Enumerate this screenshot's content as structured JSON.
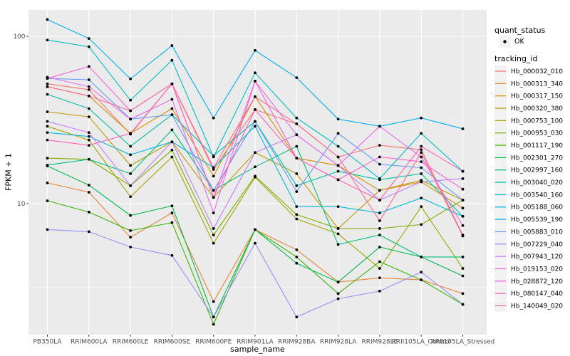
{
  "figure": {
    "x_title": "sample_name",
    "y_title": "FPKM + 1"
  },
  "legend": {
    "quant_status": {
      "title": "quant_status",
      "items": [
        {
          "label": "OK",
          "marker": "point"
        }
      ]
    },
    "tracking_id": {
      "title": "tracking_id"
    }
  },
  "colors": {
    "panel_background": "#EBEBEB",
    "grid": "#FFFFFF",
    "tick": "#333333",
    "tick_label": "#4D4D4D",
    "point": "#000000",
    "legend_key_background": "#F2F2F2"
  },
  "chart_data": {
    "type": "line",
    "title": "",
    "xlabel": "sample_name",
    "ylabel": "FPKM + 1",
    "y_scale": "log10",
    "ylim": [
      1.65,
      144
    ],
    "grid": true,
    "legend_position": "right",
    "y_axis_ticks": [
      {
        "label": "100",
        "value": 100
      },
      {
        "label": "10",
        "value": 10
      }
    ],
    "y_minor_ticks": [
      31.62,
      3.162
    ],
    "x_categories": [
      "PB350LA",
      "RRIM600LA",
      "RRIM600LE",
      "RRIM600SE",
      "RRIM600PE",
      "RRIM901LA",
      "RRIM928BA",
      "RRIM928LA",
      "RRIM928LE",
      "RRII105LA_Control",
      "RRII105LA_Stressed"
    ],
    "series": [
      {
        "name": "Hb_000032_010",
        "color": "#F8766D",
        "values": [
          52,
          48,
          26,
          52,
          16,
          36.5,
          30,
          19,
          22.3,
          21,
          6.5
        ]
      },
      {
        "name": "Hb_000313_340",
        "color": "#EA8331",
        "values": [
          13.3,
          11.7,
          6.3,
          8.8,
          2.6,
          7.0,
          5.3,
          3.4,
          3.6,
          3.5,
          2.9
        ]
      },
      {
        "name": "Hb_000317_150",
        "color": "#D89000",
        "values": [
          50,
          44,
          26.3,
          37,
          14.6,
          43.6,
          18.7,
          16.9,
          12,
          13.5,
          9.4
        ]
      },
      {
        "name": "Hb_000320_380",
        "color": "#C09B00",
        "values": [
          35.4,
          33,
          16.9,
          23.4,
          10.9,
          20.2,
          15.1,
          7.1,
          12,
          13.8,
          10.5
        ]
      },
      {
        "name": "Hb_000753_100",
        "color": "#A3A500",
        "values": [
          29,
          24,
          11,
          19,
          5.8,
          14.4,
          8.1,
          6.6,
          4.1,
          9.6,
          4.1
        ]
      },
      {
        "name": "Hb_000953_030",
        "color": "#7CAE00",
        "values": [
          18.7,
          18.4,
          12.8,
          20.9,
          6.5,
          14.6,
          8.6,
          7.1,
          7.1,
          7.5,
          10.5
        ]
      },
      {
        "name": "Hb_001117_190",
        "color": "#39B600",
        "values": [
          10.4,
          8.9,
          6.9,
          7.7,
          1.9,
          7.0,
          4.8,
          2.9,
          4.5,
          3.5,
          2.5
        ]
      },
      {
        "name": "Hb_002301_270",
        "color": "#00BB4E",
        "values": [
          16.8,
          12.9,
          8.5,
          9.7,
          2.1,
          7.0,
          4.4,
          3.4,
          5.5,
          4.8,
          3.7
        ]
      },
      {
        "name": "Hb_002997_160",
        "color": "#00BF7D",
        "values": [
          17,
          18.4,
          15.1,
          27.6,
          12,
          16.6,
          22,
          5.7,
          6.5,
          4.8,
          4.8
        ]
      },
      {
        "name": "Hb_003040_020",
        "color": "#00C1A3",
        "values": [
          45,
          37,
          22,
          34,
          19.3,
          31,
          12.8,
          15.6,
          13.9,
          15.1,
          8.4
        ]
      },
      {
        "name": "Hb_003540_160",
        "color": "#00BFC4",
        "values": [
          95,
          86.6,
          41.5,
          71.9,
          19,
          60.5,
          32.5,
          22,
          14.1,
          26.3,
          15.6
        ]
      },
      {
        "name": "Hb_005188_060",
        "color": "#00BAE0",
        "values": [
          26.6,
          25.2,
          19.6,
          23.4,
          16.4,
          29,
          9.6,
          9.6,
          8.8,
          10.8,
          8.4
        ]
      },
      {
        "name": "Hb_005539_190",
        "color": "#00B0F6",
        "values": [
          126,
          97,
          55.7,
          88,
          32.5,
          82.4,
          56.6,
          32,
          29,
          32.5,
          28
        ]
      },
      {
        "name": "Hb_005883_010",
        "color": "#619CFF",
        "values": [
          56,
          55,
          32,
          34,
          12,
          31,
          11.8,
          26.3,
          17.2,
          16.4,
          10.5
        ]
      },
      {
        "name": "Hb_007229_040",
        "color": "#9590FF",
        "values": [
          7.0,
          6.8,
          5.5,
          4.9,
          2.1,
          5.8,
          2.1,
          2.7,
          3.0,
          3.9,
          2.5
        ]
      },
      {
        "name": "Hb_007943_120",
        "color": "#C77CFF",
        "values": [
          31,
          26.6,
          12.8,
          23.4,
          7.1,
          20.2,
          25.8,
          16.9,
          10.5,
          13.5,
          14.1
        ]
      },
      {
        "name": "Hb_019153_020",
        "color": "#E76BF3",
        "values": [
          57,
          50,
          32,
          42,
          8.8,
          54,
          25.8,
          16.9,
          29,
          19,
          7.4
        ]
      },
      {
        "name": "Hb_028872_120",
        "color": "#FA62DB",
        "values": [
          56,
          66,
          35.9,
          52,
          10.9,
          54,
          18.7,
          13.9,
          19,
          17.8,
          12.2
        ]
      },
      {
        "name": "Hb_080147_040",
        "color": "#FF62BC",
        "values": [
          24,
          22.3,
          26.3,
          52,
          10.9,
          36.5,
          18.7,
          13.9,
          10.5,
          22,
          15.6
        ]
      },
      {
        "name": "Hb_140049_020",
        "color": "#FF6A98",
        "values": [
          50,
          44,
          35.9,
          52,
          16.4,
          43.6,
          30,
          19,
          7.9,
          20.2,
          6.4
        ]
      }
    ]
  }
}
